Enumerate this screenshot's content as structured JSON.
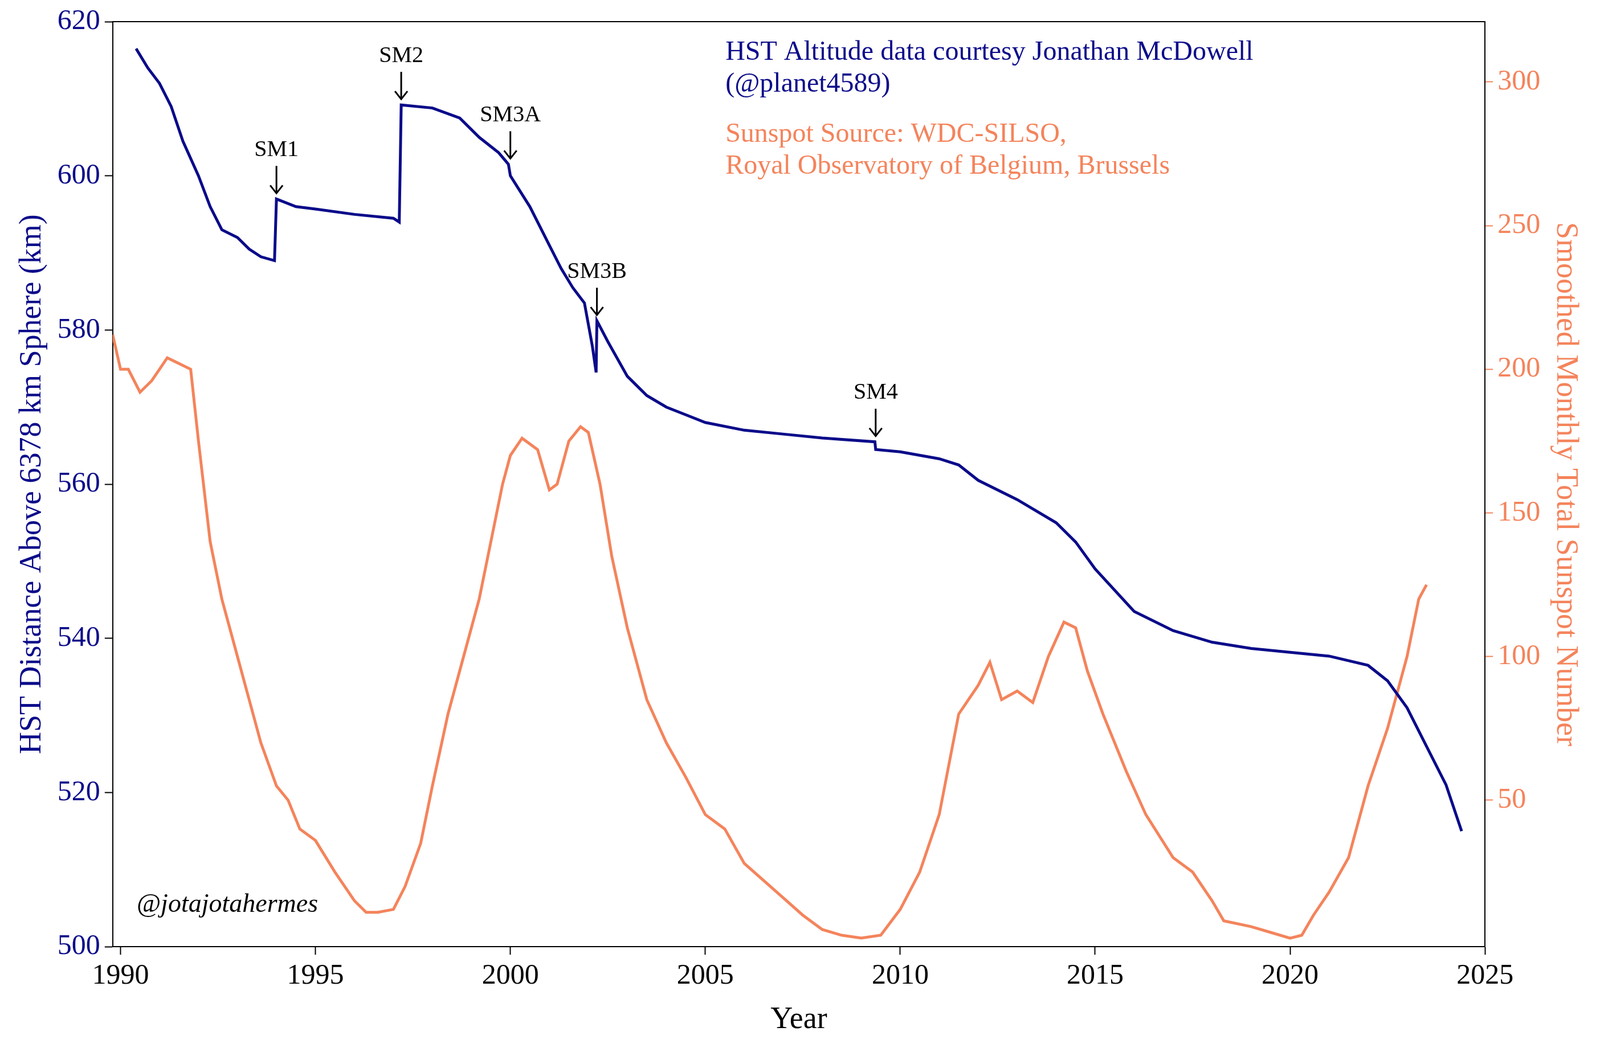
{
  "chart_data": {
    "type": "line",
    "x_label": "Year",
    "y_label": "HST Distance Above 6378 km Sphere (km)",
    "y2_label": "Smoothed Monthly Total Sunspot Number",
    "xlim": [
      1989.8,
      2025
    ],
    "xticks": [
      1990,
      1995,
      2000,
      2005,
      2010,
      2015,
      2020,
      2025
    ],
    "ylim": [
      500,
      620
    ],
    "yticks": [
      500,
      520,
      540,
      560,
      580,
      600,
      620
    ],
    "y2lim": [
      -1,
      321
    ],
    "y2ticks": [
      50,
      100,
      150,
      200,
      250,
      300
    ],
    "grid": false,
    "series": [
      {
        "axis": "y",
        "color": "#0b0b8a",
        "source": [
          "HST Altitude data courtesy Jonathan McDowell",
          "(@planet4589)"
        ],
        "x": [
          1990.4,
          1990.7,
          1991.0,
          1991.3,
          1991.6,
          1992.0,
          1992.3,
          1992.6,
          1993.0,
          1993.3,
          1993.6,
          1993.95,
          1994.0,
          1994.5,
          1995.0,
          1996.0,
          1997.0,
          1997.15,
          1997.2,
          1998.0,
          1998.7,
          1999.2,
          1999.7,
          1999.95,
          2000.0,
          2000.5,
          2001.0,
          2001.3,
          2001.6,
          2001.9,
          2002.1,
          2002.2,
          2002.22,
          2002.5,
          2003.0,
          2003.5,
          2004.0,
          2004.5,
          2005.0,
          2006.0,
          2007.0,
          2008.0,
          2009.35,
          2009.37,
          2010.0,
          2011.0,
          2011.5,
          2012.0,
          2013.0,
          2014.0,
          2014.5,
          2015.0,
          2016.0,
          2017.0,
          2018.0,
          2019.0,
          2020.0,
          2021.0,
          2022.0,
          2022.5,
          2023.0,
          2023.5,
          2024.0,
          2024.4
        ],
        "values": [
          616.5,
          614,
          612,
          609,
          604.5,
          600,
          596,
          593,
          592,
          590.5,
          589.5,
          589,
          597,
          596,
          595.7,
          595,
          594.5,
          594,
          609.2,
          608.8,
          607.5,
          605,
          603,
          601.5,
          600,
          596,
          591,
          588,
          585.5,
          583.5,
          578,
          574.5,
          581.2,
          578.5,
          574,
          571.5,
          570,
          569,
          568,
          567,
          566.5,
          566,
          565.5,
          564.5,
          564.2,
          563.3,
          562.5,
          560.5,
          558,
          555,
          552.5,
          549,
          543.5,
          541,
          539.5,
          538.7,
          538.2,
          537.7,
          536.5,
          534.5,
          531,
          526,
          521,
          515
        ]
      },
      {
        "axis": "y2",
        "color": "#f4845c",
        "source": [
          "Sunspot Source: WDC-SILSO,",
          "Royal Observatory of Belgium, Brussels"
        ],
        "x": [
          1989.8,
          1990.0,
          1990.2,
          1990.5,
          1990.8,
          1991.0,
          1991.2,
          1991.5,
          1991.8,
          1992.0,
          1992.3,
          1992.6,
          1993.0,
          1993.3,
          1993.6,
          1994.0,
          1994.3,
          1994.6,
          1995.0,
          1995.5,
          1996.0,
          1996.3,
          1996.6,
          1997.0,
          1997.3,
          1997.7,
          1998.0,
          1998.4,
          1998.8,
          1999.2,
          1999.5,
          1999.8,
          2000.0,
          2000.3,
          2000.7,
          2001.0,
          2001.2,
          2001.5,
          2001.8,
          2002.0,
          2002.3,
          2002.6,
          2003.0,
          2003.5,
          2004.0,
          2004.5,
          2005.0,
          2005.5,
          2006.0,
          2006.5,
          2007.0,
          2007.5,
          2008.0,
          2008.5,
          2009.0,
          2009.5,
          2010.0,
          2010.5,
          2011.0,
          2011.5,
          2012.0,
          2012.3,
          2012.6,
          2013.0,
          2013.4,
          2013.8,
          2014.2,
          2014.5,
          2014.8,
          2015.2,
          2015.8,
          2016.3,
          2017.0,
          2017.5,
          2018.0,
          2018.3,
          2019.0,
          2019.5,
          2020.0,
          2020.3,
          2020.6,
          2021.0,
          2021.5,
          2022.0,
          2022.5,
          2023.0,
          2023.3,
          2023.5
        ],
        "values": [
          212,
          200,
          200,
          192,
          196,
          200,
          204,
          202,
          200,
          175,
          140,
          120,
          100,
          85,
          70,
          55,
          50,
          40,
          36,
          25,
          15,
          11,
          11,
          12,
          20,
          35,
          55,
          80,
          100,
          120,
          140,
          160,
          170,
          176,
          172,
          158,
          160,
          175,
          180,
          178,
          160,
          135,
          110,
          85,
          70,
          58,
          45,
          40,
          28,
          22,
          16,
          10,
          5,
          3,
          2,
          3,
          12,
          25,
          45,
          80,
          90,
          98,
          85,
          88,
          84,
          100,
          112,
          110,
          95,
          80,
          60,
          45,
          30,
          25,
          15,
          8,
          6,
          4,
          2,
          3,
          10,
          18,
          30,
          55,
          75,
          100,
          120,
          125
        ]
      }
    ],
    "annotations": [
      {
        "text": "SM1",
        "x": 1994.0,
        "y": 597
      },
      {
        "text": "SM2",
        "x": 1997.2,
        "y": 609.2
      },
      {
        "text": "SM3A",
        "x": 2000.0,
        "y": 601.5
      },
      {
        "text": "SM3B",
        "x": 2002.22,
        "y": 581.2
      },
      {
        "text": "SM4",
        "x": 2009.37,
        "y": 565.5
      }
    ],
    "credit": "@jotajotahermes"
  }
}
